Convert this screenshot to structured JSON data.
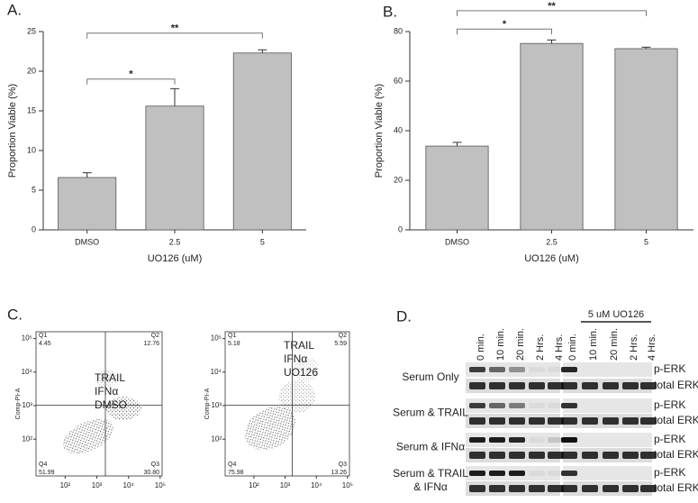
{
  "panel_labels": [
    "A.",
    "B.",
    "C.",
    "D."
  ],
  "chart_data": [
    {
      "type": "bar",
      "categories": [
        "DMSO",
        "2.5",
        "5"
      ],
      "values": [
        6.6,
        15.6,
        22.3
      ],
      "errors": [
        0.6,
        2.2,
        0.4
      ],
      "color": "#c0c0c0",
      "xlabel": "UO126 (uM)",
      "ylabel": "Proportion Viable (%)",
      "ylim": [
        0,
        25
      ],
      "yticks": [
        0,
        5,
        10,
        15,
        20,
        25
      ],
      "significance": [
        {
          "from": "DMSO",
          "to": "2.5",
          "label": "*",
          "y": 19
        },
        {
          "from": "DMSO",
          "to": "5",
          "label": "**",
          "y": 24.8
        }
      ]
    },
    {
      "type": "bar",
      "categories": [
        "DMSO",
        "2.5",
        "5"
      ],
      "values": [
        33.8,
        75.2,
        73.1
      ],
      "errors": [
        1.5,
        1.4,
        0.6
      ],
      "color": "#c0c0c0",
      "xlabel": "UO126 (uM)",
      "ylabel": "Proportion Viable (%)",
      "ylim": [
        0,
        80
      ],
      "yticks": [
        0,
        20,
        40,
        60,
        80
      ],
      "significance": [
        {
          "from": "DMSO",
          "to": "2.5",
          "label": "*",
          "y": 81
        },
        {
          "from": "DMSO",
          "to": "5",
          "label": "**",
          "y": 88.4
        }
      ]
    },
    {
      "type": "scatter",
      "ylabel": "Comp-PI-A",
      "log_scale": true,
      "xlim": [
        12,
        115000
      ],
      "ylim": [
        8,
        160000
      ],
      "xticks": [
        {
          "value": 100,
          "label": "10²"
        },
        {
          "value": 1000,
          "label": "10³"
        },
        {
          "value": 10000,
          "label": "10⁴"
        },
        {
          "value": 100000,
          "label": "10⁵"
        }
      ],
      "yticks": [
        {
          "value": 100,
          "label": "10²"
        },
        {
          "value": 1000,
          "label": "10³"
        },
        {
          "value": 10000,
          "label": "10⁴"
        },
        {
          "value": 100000,
          "label": "10⁵"
        }
      ],
      "quadrants": [
        "Q1",
        "Q2",
        "Q3",
        "Q4"
      ],
      "values": [
        4.45,
        12.76,
        30.8,
        51.99
      ],
      "value_labels": [
        "4.45",
        "12.76",
        "30.80",
        "51.99"
      ],
      "annotation": [
        "TRAIL",
        "IFNα",
        "DMSO"
      ]
    },
    {
      "type": "scatter",
      "ylabel": "Comp-PI-A",
      "log_scale": true,
      "xlim": [
        12,
        115000
      ],
      "ylim": [
        8,
        160000
      ],
      "xticks": [
        {
          "value": 100,
          "label": "10²"
        },
        {
          "value": 1000,
          "label": "10³"
        },
        {
          "value": 10000,
          "label": "10⁴"
        },
        {
          "value": 100000,
          "label": "10⁵"
        }
      ],
      "yticks": [
        {
          "value": 100,
          "label": "10²"
        },
        {
          "value": 1000,
          "label": "10³"
        },
        {
          "value": 10000,
          "label": "10⁴"
        },
        {
          "value": 100000,
          "label": "10⁵"
        }
      ],
      "quadrants": [
        "Q1",
        "Q2",
        "Q3",
        "Q4"
      ],
      "values": [
        5.18,
        5.59,
        13.26,
        75.98
      ],
      "value_labels": [
        "5.18",
        "5.59",
        "13.26",
        "75.98"
      ],
      "annotation": [
        "TRAIL",
        "IFNα",
        "UO126"
      ]
    }
  ],
  "blot": {
    "columns": [
      "0 min.",
      "10 min.",
      "20 min.",
      "2 Hrs.",
      "4 Hrs.",
      "0 min.",
      "10 min.",
      "20 min.",
      "2 Hrs.",
      "4 Hrs."
    ],
    "treatment_label": "5 uM UO126",
    "rows": [
      {
        "name_lines": [
          "Serum Only"
        ],
        "bands": [
          "p-ERK",
          "total ERK"
        ]
      },
      {
        "name_lines": [
          "Serum & TRAIL"
        ],
        "bands": [
          "p-ERK",
          "total ERK"
        ]
      },
      {
        "name_lines": [
          "Serum & IFNα"
        ],
        "bands": [
          "p-ERK",
          "total ERK"
        ]
      },
      {
        "name_lines": [
          "Serum & TRAIL",
          "& IFNα"
        ],
        "bands": [
          "p-ERK",
          "total ERK"
        ]
      }
    ]
  }
}
